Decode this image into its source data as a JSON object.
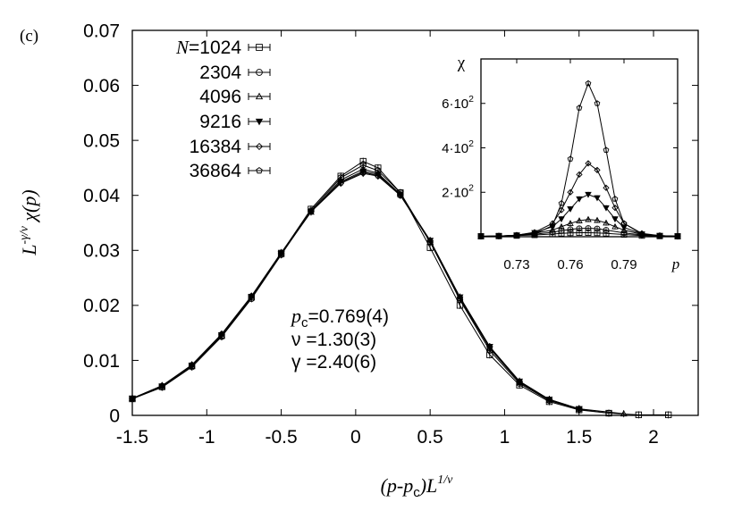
{
  "panel_label": "(c)",
  "annotation": {
    "pc": {
      "sym": "p",
      "sub": "c",
      "val": "=0.769(4)"
    },
    "nu": "ν =1.30(3)",
    "gamma": "γ =2.40(6)"
  },
  "axis_titles": {
    "x": {
      "a": "(p-p",
      "sub": "c",
      "b": ")L",
      "sup": "1/ν"
    },
    "y": {
      "a": "L",
      "sup": "-γ/ν",
      "b": " χ(p)"
    }
  },
  "legend": {
    "prefix": "N",
    "entries": [
      "=1024",
      "2304",
      "4096",
      "9216",
      "16384",
      "36864"
    ]
  },
  "chart_data": [
    {
      "type": "line",
      "title": "",
      "xlabel": "(p-pc)L^(1/ν)",
      "ylabel": "L^(-γ/ν) χ(p)",
      "xlim": [
        -1.5,
        2.3
      ],
      "ylim": [
        0,
        0.07
      ],
      "xticks": [
        -1.5,
        -1,
        -0.5,
        0,
        0.5,
        1,
        1.5,
        2
      ],
      "xtick_labels": [
        "-1.5",
        "-1",
        "-0.5",
        "0",
        "0.5",
        "1",
        "1.5",
        "2"
      ],
      "yticks": [
        0,
        0.01,
        0.02,
        0.03,
        0.04,
        0.05,
        0.06,
        0.07
      ],
      "ytick_labels": [
        "0",
        "0.01",
        "0.02",
        "0.03",
        "0.04",
        "0.05",
        "0.06",
        "0.07"
      ],
      "legend_position": "top-left",
      "series": [
        {
          "name": "N=1024",
          "marker": "square",
          "x": [
            -1.5,
            -1.3,
            -1.1,
            -0.9,
            -0.7,
            -0.5,
            -0.3,
            -0.1,
            0.05,
            0.15,
            0.3,
            0.5,
            0.7,
            0.9,
            1.1,
            1.3,
            1.5,
            1.7,
            1.9,
            2.1
          ],
          "y": [
            0.003,
            0.0052,
            0.009,
            0.0145,
            0.0215,
            0.0295,
            0.0375,
            0.0435,
            0.0462,
            0.045,
            0.0405,
            0.0305,
            0.02,
            0.011,
            0.0055,
            0.0025,
            0.001,
            0.0004,
            0.0001,
            0.0001
          ]
        },
        {
          "name": "2304",
          "marker": "circle",
          "x": [
            -1.5,
            -1.3,
            -1.1,
            -0.9,
            -0.7,
            -0.5,
            -0.3,
            -0.1,
            0.05,
            0.15,
            0.3,
            0.5,
            0.7,
            0.9,
            1.1,
            1.3,
            1.5,
            1.7
          ],
          "y": [
            0.003,
            0.0051,
            0.0088,
            0.0143,
            0.0212,
            0.0292,
            0.0372,
            0.0432,
            0.0455,
            0.0445,
            0.0405,
            0.0315,
            0.021,
            0.0118,
            0.0058,
            0.0027,
            0.0011,
            0.0004
          ]
        },
        {
          "name": "4096",
          "marker": "triangle-up",
          "x": [
            -1.5,
            -1.3,
            -1.1,
            -0.9,
            -0.7,
            -0.5,
            -0.3,
            -0.1,
            0.05,
            0.15,
            0.3,
            0.5,
            0.7,
            0.9,
            1.1,
            1.3,
            1.5,
            1.8
          ],
          "y": [
            0.0031,
            0.0053,
            0.009,
            0.0145,
            0.0214,
            0.0293,
            0.037,
            0.0428,
            0.0448,
            0.044,
            0.0402,
            0.0315,
            0.0212,
            0.0122,
            0.006,
            0.0028,
            0.0012,
            0.0003
          ]
        },
        {
          "name": "9216",
          "marker": "triangle-down",
          "x": [
            -1.5,
            -1.3,
            -1.1,
            -0.9,
            -0.7,
            -0.5,
            -0.3,
            -0.1,
            0.05,
            0.15,
            0.3,
            0.5,
            0.7,
            0.9,
            1.1,
            1.3,
            1.5
          ],
          "y": [
            0.0031,
            0.0053,
            0.0091,
            0.0146,
            0.0215,
            0.0294,
            0.037,
            0.0425,
            0.0444,
            0.0438,
            0.0402,
            0.0318,
            0.0215,
            0.0125,
            0.0062,
            0.0029,
            0.0012
          ]
        },
        {
          "name": "16384",
          "marker": "diamond",
          "x": [
            -1.5,
            -1.3,
            -1.1,
            -0.9,
            -0.7,
            -0.5,
            -0.3,
            -0.1,
            0.05,
            0.15,
            0.3,
            0.5,
            0.7,
            0.9,
            1.1,
            1.3,
            1.5
          ],
          "y": [
            0.0031,
            0.0054,
            0.0091,
            0.0147,
            0.0216,
            0.0295,
            0.037,
            0.0422,
            0.044,
            0.0435,
            0.04,
            0.0318,
            0.0215,
            0.0125,
            0.0062,
            0.0029,
            0.0012
          ]
        },
        {
          "name": "36864",
          "marker": "pentagon",
          "x": [
            -1.5,
            -1.3,
            -1.1,
            -0.9,
            -0.7,
            -0.5,
            -0.3,
            -0.1,
            0.05,
            0.15,
            0.3,
            0.5,
            0.7,
            0.9,
            1.1,
            1.3
          ],
          "y": [
            0.0031,
            0.0054,
            0.0092,
            0.0148,
            0.0217,
            0.0296,
            0.0371,
            0.0423,
            0.0442,
            0.0436,
            0.04,
            0.0316,
            0.0213,
            0.0123,
            0.0061,
            0.0028
          ]
        }
      ]
    },
    {
      "type": "line",
      "title": "",
      "xlabel": "p",
      "ylabel": "χ",
      "xlim": [
        0.71,
        0.82
      ],
      "ylim": [
        0,
        800
      ],
      "xticks": [
        0.73,
        0.76,
        0.79
      ],
      "xtick_labels": [
        "0.73",
        "0.76",
        "0.79"
      ],
      "yticks": [
        200,
        400,
        600
      ],
      "ytick_labels": [
        {
          "a": "2·10",
          "sup": "2"
        },
        {
          "a": "4·10",
          "sup": "2"
        },
        {
          "a": "6·10",
          "sup": "2"
        }
      ],
      "series": [
        {
          "name": "1024",
          "marker": "square",
          "x": [
            0.71,
            0.72,
            0.73,
            0.74,
            0.75,
            0.755,
            0.76,
            0.765,
            0.77,
            0.775,
            0.78,
            0.79,
            0.8,
            0.81,
            0.82
          ],
          "y": [
            2,
            3,
            5,
            8,
            12,
            15,
            17,
            18,
            18,
            17,
            15,
            10,
            5,
            3,
            2
          ]
        },
        {
          "name": "2304",
          "marker": "circle",
          "x": [
            0.71,
            0.72,
            0.73,
            0.74,
            0.75,
            0.755,
            0.76,
            0.765,
            0.77,
            0.775,
            0.78,
            0.79,
            0.8,
            0.81,
            0.82
          ],
          "y": [
            2,
            3,
            6,
            11,
            20,
            27,
            33,
            37,
            38,
            36,
            30,
            17,
            8,
            4,
            2
          ]
        },
        {
          "name": "4096",
          "marker": "triangle-up",
          "x": [
            0.71,
            0.72,
            0.73,
            0.74,
            0.75,
            0.755,
            0.76,
            0.765,
            0.77,
            0.775,
            0.78,
            0.785,
            0.79,
            0.8,
            0.81,
            0.82
          ],
          "y": [
            2,
            3,
            7,
            15,
            30,
            45,
            60,
            72,
            78,
            74,
            62,
            45,
            30,
            10,
            5,
            2
          ]
        },
        {
          "name": "9216",
          "marker": "triangle-down",
          "x": [
            0.71,
            0.72,
            0.73,
            0.74,
            0.75,
            0.755,
            0.76,
            0.765,
            0.77,
            0.775,
            0.78,
            0.785,
            0.79,
            0.8,
            0.81,
            0.82
          ],
          "y": [
            2,
            3,
            7,
            18,
            45,
            80,
            125,
            170,
            190,
            175,
            130,
            80,
            42,
            12,
            5,
            2
          ]
        },
        {
          "name": "16384",
          "marker": "diamond",
          "x": [
            0.71,
            0.72,
            0.73,
            0.74,
            0.75,
            0.755,
            0.76,
            0.765,
            0.77,
            0.775,
            0.78,
            0.785,
            0.79,
            0.8,
            0.81,
            0.82
          ],
          "y": [
            2,
            3,
            7,
            20,
            60,
            120,
            200,
            280,
            330,
            300,
            220,
            130,
            60,
            15,
            5,
            2
          ]
        },
        {
          "name": "36864",
          "marker": "pentagon",
          "x": [
            0.71,
            0.72,
            0.73,
            0.74,
            0.75,
            0.755,
            0.76,
            0.765,
            0.77,
            0.775,
            0.78,
            0.785,
            0.79,
            0.8,
            0.81,
            0.82
          ],
          "y": [
            2,
            3,
            5,
            12,
            50,
            150,
            350,
            580,
            690,
            600,
            390,
            170,
            60,
            12,
            4,
            2
          ]
        }
      ]
    }
  ]
}
